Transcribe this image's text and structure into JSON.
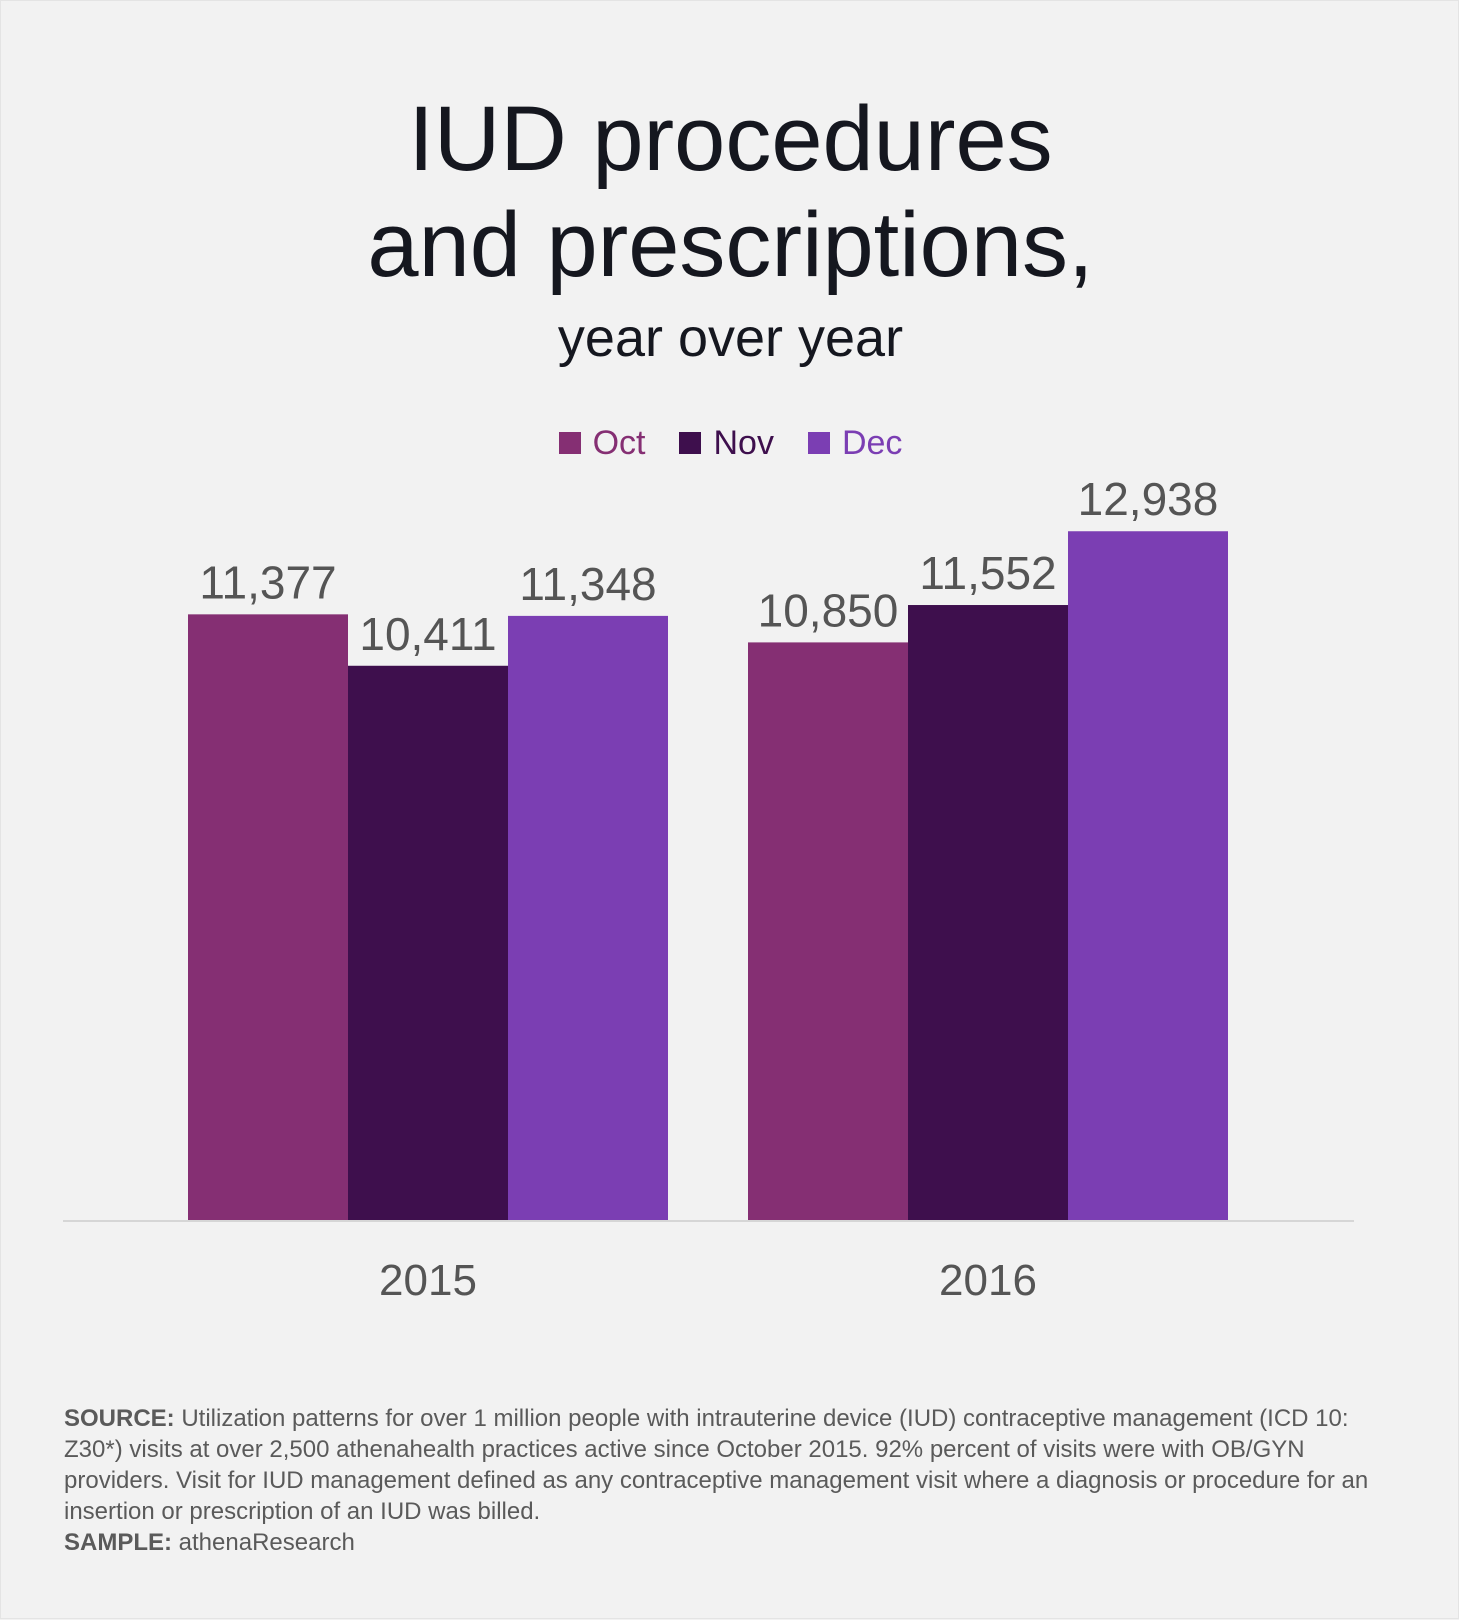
{
  "title_line1": "IUD procedures",
  "title_line2": "and prescriptions,",
  "subtitle": "year over year",
  "colors": {
    "oct": "#852f73",
    "nov": "#3e0f4d",
    "dec": "#7b3eb3",
    "axis": "#d6d6d6",
    "label_text": "#555555"
  },
  "chart_data": {
    "type": "bar",
    "categories": [
      "2015",
      "2016"
    ],
    "series": [
      {
        "name": "Oct",
        "values": [
          11377,
          10850
        ]
      },
      {
        "name": "Nov",
        "values": [
          10411,
          11552
        ]
      },
      {
        "name": "Dec",
        "values": [
          11348,
          12938
        ]
      }
    ],
    "data_labels": [
      [
        "11,377",
        "10,850"
      ],
      [
        "10,411",
        "11,552"
      ],
      [
        "11,348",
        "12,938"
      ]
    ],
    "xlabel": "",
    "ylabel": "",
    "ylim": [
      0,
      13600
    ],
    "grid": false,
    "legend_position": "top-center"
  },
  "legend": {
    "oct": "Oct",
    "nov": "Nov",
    "dec": "Dec"
  },
  "footnote": {
    "source_label": "SOURCE:",
    "source_text": " Utilization patterns for over 1 million people with intrauterine device (IUD) contraceptive management (ICD 10: Z30*) visits at over 2,500 athenahealth practices active since October 2015. 92% percent of visits were with OB/GYN providers. Visit for IUD management defined as any contraceptive management visit where a diagnosis or procedure for an insertion or prescription of an IUD was billed.",
    "sample_label": "SAMPLE:",
    "sample_text": " athenaResearch"
  }
}
